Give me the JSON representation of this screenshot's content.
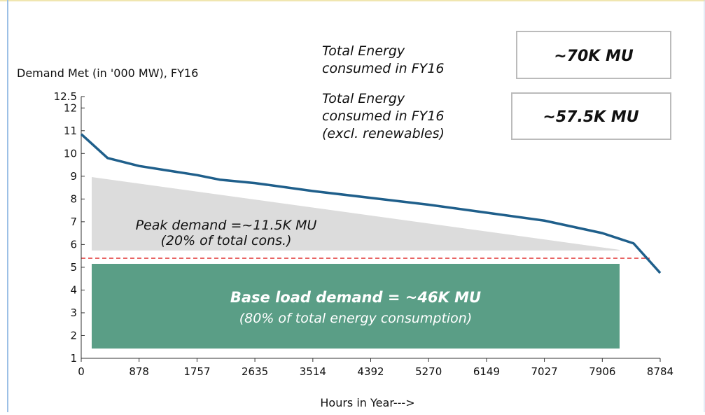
{
  "chart_data": {
    "type": "line",
    "y_label": "Demand Met (in '000 MW), FY16",
    "x_label": "Hours in Year--->",
    "x": [
      0,
      400,
      878,
      1757,
      2100,
      2635,
      3514,
      4392,
      5270,
      6149,
      7027,
      7906,
      8380,
      8784
    ],
    "values": [
      10.85,
      9.8,
      9.45,
      9.05,
      8.85,
      8.7,
      8.35,
      8.05,
      7.75,
      7.4,
      7.05,
      6.5,
      6.05,
      4.75
    ],
    "color": "#1f5f8b",
    "xlim": [
      0,
      8784
    ],
    "xticks": [
      0,
      878,
      1757,
      2635,
      3514,
      4392,
      5270,
      6149,
      7027,
      7906,
      8784
    ],
    "ylim": [
      1,
      12.5
    ],
    "yticks": [
      1,
      2,
      3,
      4,
      5,
      6,
      7,
      8,
      9,
      10,
      11,
      12,
      12.5
    ],
    "annotations": {
      "total_label": [
        "Total Energy",
        "consumed in FY16"
      ],
      "total_value": "~70K MU",
      "excl_label": [
        "Total Energy",
        "consumed in FY16",
        "(excl. renewables)"
      ],
      "excl_value": "~57.5K MU",
      "peak": [
        "Peak demand =~11.5K MU",
        "(20% of total cons.)"
      ],
      "base": [
        "Base load demand = ~46K MU",
        "(80% of total energy consumption)"
      ]
    }
  }
}
